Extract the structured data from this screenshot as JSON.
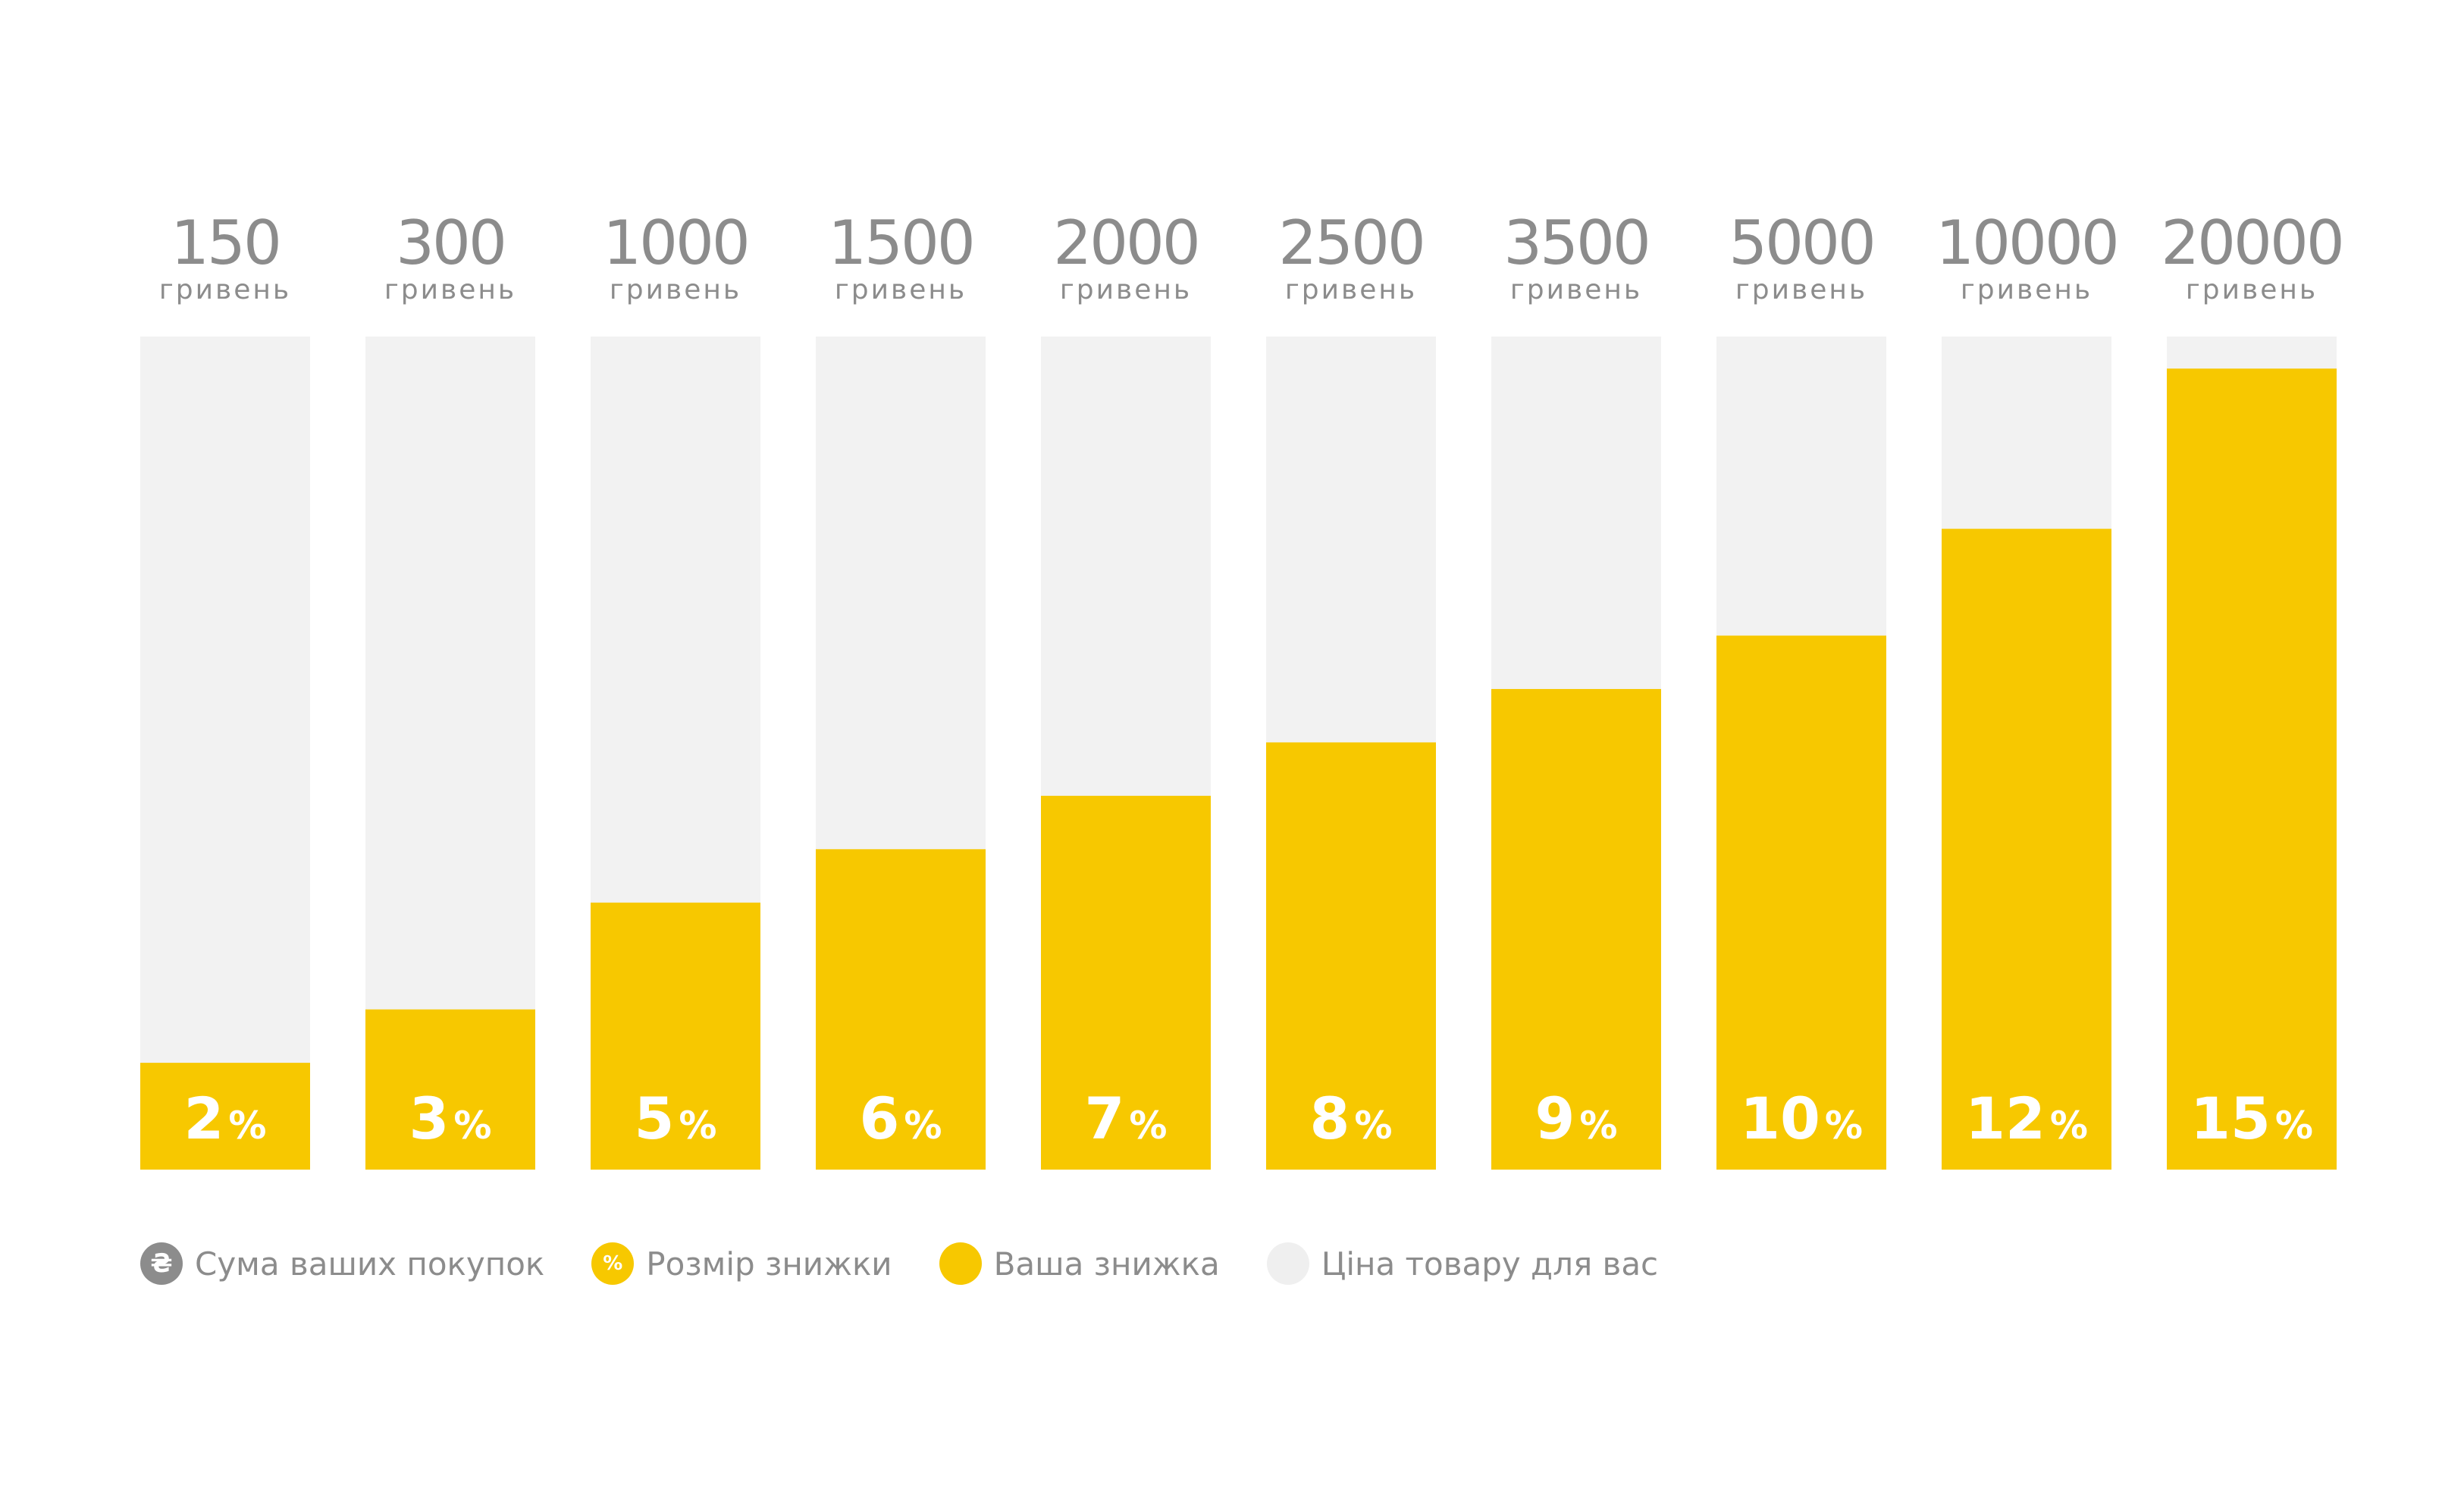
{
  "chart_data": {
    "type": "bar",
    "categories": [
      "150",
      "300",
      "1000",
      "1500",
      "2000",
      "2500",
      "3500",
      "5000",
      "10000",
      "20000"
    ],
    "category_unit": "гривень",
    "values": [
      2,
      3,
      5,
      6,
      7,
      8,
      9,
      10,
      12,
      15
    ],
    "value_suffix": "%",
    "ylim": [
      0,
      15.6
    ],
    "grid": false,
    "legend_position": "bottom-left"
  },
  "colors": {
    "discount": "#f7c800",
    "price_track": "#f2f2f2",
    "amount_icon": "#8c8c8c",
    "text": "#8c8c8c"
  },
  "legend": {
    "items": [
      {
        "label": "Сума ваших покупок",
        "icon": "hryvnia-icon",
        "symbol": "₴",
        "color": "#8c8c8c"
      },
      {
        "label": "Розмір знижки",
        "icon": "percent-icon",
        "symbol": "%",
        "color": "#f7c800"
      },
      {
        "label": "Ваша знижка",
        "icon": "yellow-dot-icon",
        "symbol": "",
        "color": "#f7c800"
      },
      {
        "label": "Ціна товару для вас",
        "icon": "gray-dot-icon",
        "symbol": "",
        "color": "#efefef"
      }
    ]
  }
}
